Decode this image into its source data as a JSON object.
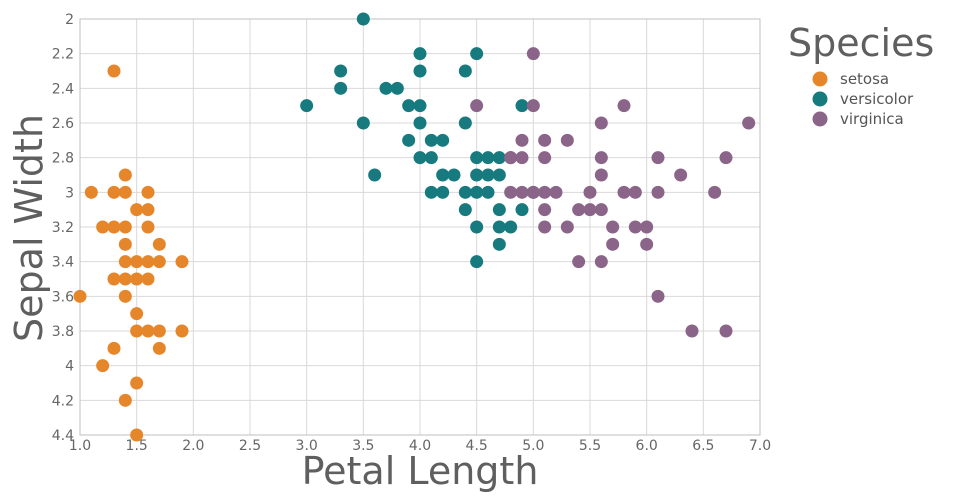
{
  "chart_data": {
    "type": "scatter",
    "xlabel": "Petal Length",
    "ylabel": "Sepal Width",
    "xlim": [
      1.0,
      7.0
    ],
    "ylim": [
      2.0,
      4.4
    ],
    "y_reversed": true,
    "grid": true,
    "x_ticks": [
      "1.0",
      "1.5",
      "2.0",
      "2.5",
      "3.0",
      "3.5",
      "4.0",
      "4.5",
      "5.0",
      "5.5",
      "6.0",
      "6.5",
      "7.0"
    ],
    "y_ticks": [
      "2",
      "2.2",
      "2.4",
      "2.6",
      "2.8",
      "3",
      "3.2",
      "3.4",
      "3.6",
      "3.8",
      "4",
      "4.2",
      "4.4"
    ],
    "legend": {
      "title": "Species",
      "position": "right"
    },
    "series": [
      {
        "name": "setosa",
        "color": "#e6862a",
        "points": [
          [
            1.3,
            2.3
          ],
          [
            1.0,
            3.6
          ],
          [
            1.1,
            3.0
          ],
          [
            1.2,
            3.2
          ],
          [
            1.2,
            4.0
          ],
          [
            1.3,
            3.0
          ],
          [
            1.3,
            3.2
          ],
          [
            1.3,
            3.5
          ],
          [
            1.3,
            3.9
          ],
          [
            1.4,
            2.9
          ],
          [
            1.4,
            3.0
          ],
          [
            1.4,
            3.2
          ],
          [
            1.4,
            3.3
          ],
          [
            1.4,
            3.4
          ],
          [
            1.4,
            3.5
          ],
          [
            1.4,
            3.6
          ],
          [
            1.4,
            4.2
          ],
          [
            1.5,
            3.1
          ],
          [
            1.5,
            3.4
          ],
          [
            1.5,
            3.5
          ],
          [
            1.5,
            3.7
          ],
          [
            1.5,
            3.8
          ],
          [
            1.5,
            4.1
          ],
          [
            1.5,
            4.4
          ],
          [
            1.6,
            3.0
          ],
          [
            1.6,
            3.1
          ],
          [
            1.6,
            3.2
          ],
          [
            1.6,
            3.4
          ],
          [
            1.6,
            3.5
          ],
          [
            1.6,
            3.8
          ],
          [
            1.7,
            3.3
          ],
          [
            1.7,
            3.4
          ],
          [
            1.7,
            3.8
          ],
          [
            1.7,
            3.9
          ],
          [
            1.9,
            3.4
          ],
          [
            1.9,
            3.8
          ]
        ]
      },
      {
        "name": "versicolor",
        "color": "#167a7e",
        "points": [
          [
            3.0,
            2.5
          ],
          [
            3.3,
            2.3
          ],
          [
            3.3,
            2.4
          ],
          [
            3.5,
            2.0
          ],
          [
            3.5,
            2.6
          ],
          [
            3.6,
            2.9
          ],
          [
            3.7,
            2.4
          ],
          [
            3.8,
            2.4
          ],
          [
            3.9,
            2.5
          ],
          [
            3.9,
            2.7
          ],
          [
            4.0,
            2.2
          ],
          [
            4.0,
            2.3
          ],
          [
            4.0,
            2.5
          ],
          [
            4.0,
            2.6
          ],
          [
            4.0,
            2.8
          ],
          [
            4.1,
            2.7
          ],
          [
            4.1,
            2.8
          ],
          [
            4.1,
            3.0
          ],
          [
            4.2,
            2.7
          ],
          [
            4.2,
            2.9
          ],
          [
            4.2,
            3.0
          ],
          [
            4.3,
            2.9
          ],
          [
            4.4,
            2.3
          ],
          [
            4.4,
            2.6
          ],
          [
            4.4,
            3.0
          ],
          [
            4.4,
            3.1
          ],
          [
            4.5,
            2.2
          ],
          [
            4.5,
            2.8
          ],
          [
            4.5,
            2.9
          ],
          [
            4.5,
            3.0
          ],
          [
            4.5,
            3.2
          ],
          [
            4.5,
            3.4
          ],
          [
            4.6,
            2.8
          ],
          [
            4.6,
            2.9
          ],
          [
            4.6,
            3.0
          ],
          [
            4.7,
            2.8
          ],
          [
            4.7,
            2.9
          ],
          [
            4.7,
            3.1
          ],
          [
            4.7,
            3.2
          ],
          [
            4.7,
            3.3
          ],
          [
            4.8,
            2.8
          ],
          [
            4.8,
            3.2
          ],
          [
            4.9,
            2.5
          ],
          [
            4.9,
            3.1
          ],
          [
            5.0,
            3.0
          ]
        ]
      },
      {
        "name": "virginica",
        "color": "#8b6589",
        "points": [
          [
            4.5,
            2.5
          ],
          [
            4.8,
            2.8
          ],
          [
            4.8,
            3.0
          ],
          [
            4.9,
            2.7
          ],
          [
            4.9,
            2.8
          ],
          [
            4.9,
            3.0
          ],
          [
            5.0,
            2.2
          ],
          [
            5.0,
            2.5
          ],
          [
            5.0,
            3.0
          ],
          [
            5.1,
            2.7
          ],
          [
            5.1,
            2.8
          ],
          [
            5.1,
            3.0
          ],
          [
            5.1,
            3.1
          ],
          [
            5.1,
            3.2
          ],
          [
            5.2,
            3.0
          ],
          [
            5.3,
            2.7
          ],
          [
            5.3,
            3.2
          ],
          [
            5.4,
            3.1
          ],
          [
            5.4,
            3.4
          ],
          [
            5.5,
            3.0
          ],
          [
            5.5,
            3.1
          ],
          [
            5.6,
            2.6
          ],
          [
            5.6,
            2.8
          ],
          [
            5.6,
            2.9
          ],
          [
            5.6,
            3.1
          ],
          [
            5.6,
            3.4
          ],
          [
            5.7,
            3.2
          ],
          [
            5.7,
            3.3
          ],
          [
            5.8,
            2.5
          ],
          [
            5.8,
            3.0
          ],
          [
            5.9,
            3.0
          ],
          [
            5.9,
            3.2
          ],
          [
            6.0,
            3.2
          ],
          [
            6.0,
            3.3
          ],
          [
            6.1,
            2.8
          ],
          [
            6.1,
            3.0
          ],
          [
            6.1,
            3.6
          ],
          [
            6.3,
            2.9
          ],
          [
            6.4,
            3.8
          ],
          [
            6.6,
            3.0
          ],
          [
            6.7,
            2.8
          ],
          [
            6.7,
            3.8
          ],
          [
            6.9,
            2.6
          ]
        ]
      }
    ]
  }
}
